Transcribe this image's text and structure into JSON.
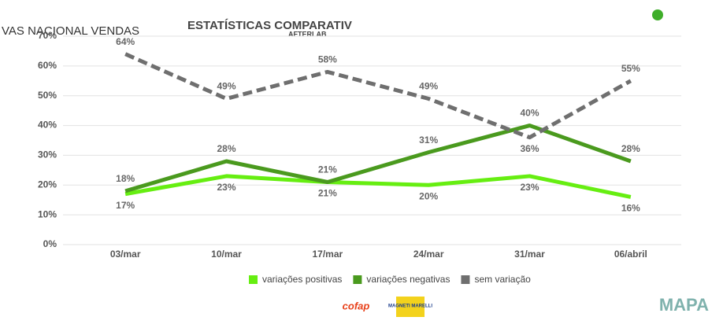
{
  "header_left": "VAS NACIONAL VENDAS",
  "header_note": "AFTERLAB",
  "brand_logos": [
    "cofap",
    "MAGNETI MARELLI"
  ],
  "footer_logo": "MAPA",
  "chart_data": {
    "type": "line",
    "title": "ESTATÍSTICAS COMPARATIV",
    "categories": [
      "03/mar",
      "10/mar",
      "17/mar",
      "24/mar",
      "31/mar",
      "06/abril"
    ],
    "series": [
      {
        "name": "variações positivas",
        "color": "#66ee11",
        "dashed": false,
        "label_side": "below",
        "values": [
          17,
          23,
          21,
          20,
          23,
          16
        ],
        "value_labels": [
          "17%",
          "23%",
          "21%",
          "20%",
          "23%",
          "16%"
        ]
      },
      {
        "name": "variações negativas",
        "color": "#4a9a1e",
        "dashed": false,
        "label_side": "above",
        "values": [
          18,
          28,
          21,
          31,
          40,
          28
        ],
        "value_labels": [
          "18%",
          "28%",
          "21%",
          "31%",
          "40%",
          "28%"
        ]
      },
      {
        "name": "sem variação",
        "color": "#6f6f6f",
        "dashed": true,
        "label_side": "above",
        "values": [
          64,
          49,
          58,
          49,
          36,
          55
        ],
        "value_labels": [
          "64%",
          "49%",
          "58%",
          "49%",
          "36%",
          "55%"
        ]
      }
    ],
    "ylim": [
      0,
      70
    ],
    "yticks": [
      {
        "value": 0,
        "label": "0%"
      },
      {
        "value": 10,
        "label": "10%"
      },
      {
        "value": 20,
        "label": "20%"
      },
      {
        "value": 30,
        "label": "30%"
      },
      {
        "value": 40,
        "label": "40%"
      },
      {
        "value": 50,
        "label": "50%"
      },
      {
        "value": 60,
        "label": "60%"
      },
      {
        "value": 70,
        "label": "70%"
      }
    ],
    "grid": true
  }
}
